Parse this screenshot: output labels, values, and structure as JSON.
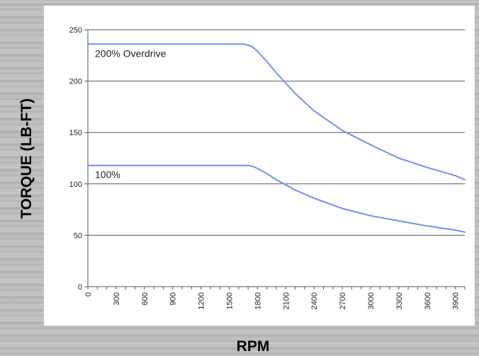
{
  "chart_data": {
    "type": "line",
    "title": "",
    "xlabel": "RPM",
    "ylabel": "TORQUE (LB-FT)",
    "xlim": [
      0,
      4000
    ],
    "ylim": [
      0,
      250
    ],
    "x_ticks": [
      "0",
      "300",
      "600",
      "900",
      "1200",
      "1500",
      "1800",
      "2100",
      "2400",
      "2700",
      "3000",
      "3300",
      "3600",
      "3900"
    ],
    "y_ticks": [
      "0",
      "50",
      "100",
      "150",
      "200",
      "250"
    ],
    "grid": true,
    "series": [
      {
        "name": "200% Overdrive",
        "color": "#6f8ff2",
        "x": [
          0,
          300,
          600,
          900,
          1200,
          1500,
          1650,
          1700,
          1750,
          1800,
          1900,
          2000,
          2100,
          2200,
          2400,
          2700,
          3000,
          3300,
          3600,
          3900,
          4000
        ],
        "y": [
          236,
          236,
          236,
          236,
          236,
          236,
          236,
          235,
          233,
          229,
          219,
          208,
          198,
          188,
          171,
          152,
          138,
          125,
          116,
          108,
          104
        ]
      },
      {
        "name": "100%",
        "color": "#6f8ff2",
        "x": [
          0,
          300,
          600,
          900,
          1200,
          1500,
          1650,
          1700,
          1750,
          1800,
          1900,
          2000,
          2100,
          2200,
          2400,
          2700,
          3000,
          3300,
          3600,
          3900,
          4000
        ],
        "y": [
          118,
          118,
          118,
          118,
          118,
          118,
          118,
          118,
          117,
          115,
          110,
          104,
          99,
          94,
          86,
          76,
          69,
          64,
          59,
          55,
          53
        ]
      }
    ]
  }
}
